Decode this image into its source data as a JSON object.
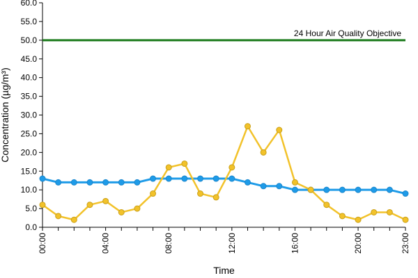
{
  "chart_data": {
    "type": "line",
    "title": "",
    "xlabel": "Time",
    "ylabel": "Concentration (µg/m³)",
    "ylim": [
      0,
      60
    ],
    "yticks": [
      "0.0",
      "5.0",
      "10.0",
      "15.0",
      "20.0",
      "25.0",
      "30.0",
      "35.0",
      "40.0",
      "45.0",
      "50.0",
      "55.0",
      "60.0"
    ],
    "x": [
      "00:00",
      "01:00",
      "02:00",
      "03:00",
      "04:00",
      "05:00",
      "06:00",
      "07:00",
      "08:00",
      "09:00",
      "10:00",
      "11:00",
      "12:00",
      "13:00",
      "14:00",
      "15:00",
      "16:00",
      "17:00",
      "18:00",
      "19:00",
      "20:00",
      "21:00",
      "22:00",
      "23:00"
    ],
    "xtick_labels": [
      "00:00",
      "04:00",
      "08:00",
      "12:00",
      "16:00",
      "20:00",
      "23:00"
    ],
    "grid": false,
    "legend": "none",
    "series": [
      {
        "color": "#1e9be8",
        "values": [
          13,
          12,
          12,
          12,
          12,
          12,
          12,
          13,
          13,
          13,
          13,
          13,
          13,
          12,
          11,
          11,
          10,
          10,
          10,
          10,
          10,
          10,
          10,
          9
        ]
      },
      {
        "color": "#f2c22a",
        "values": [
          6,
          3,
          2,
          6,
          7,
          4,
          5,
          9,
          16,
          17,
          9,
          8,
          16,
          27,
          20,
          26,
          12,
          10,
          6,
          3,
          2,
          4,
          4,
          2
        ]
      }
    ],
    "reference_line": {
      "label": "24 Hour Air Quality Objective",
      "value": 50,
      "color": "#1a7a1a"
    }
  }
}
